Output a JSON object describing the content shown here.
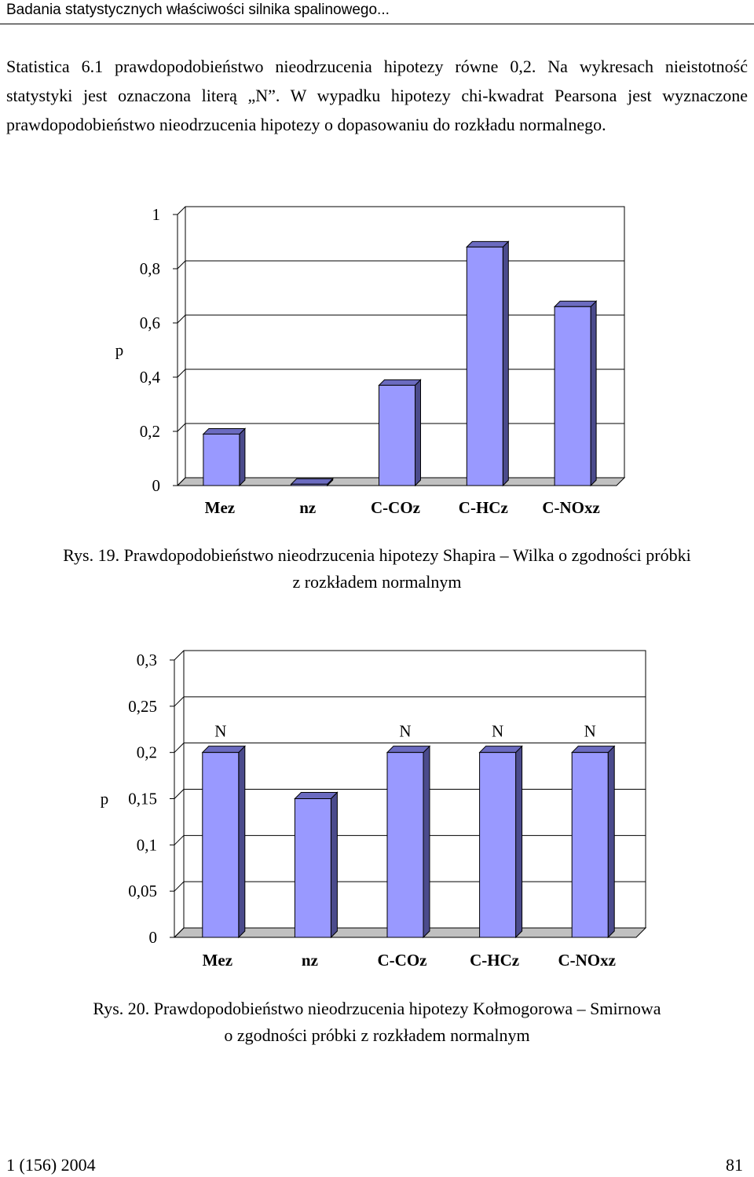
{
  "header": {
    "running_title": "Badania statystycznych właściwości silnika spalinowego..."
  },
  "paragraph": "Statistica 6.1 prawdopodobieństwo nieodrzucenia hipotezy równe 0,2. Na wykresach nieistotność statystyki jest oznaczona literą „N”. W wypadku hipotezy chi-kwadrat Pearsona jest wyznaczone prawdopodobieństwo nieodrzucenia hipotezy o dopasowaniu do rozkładu normalnego.",
  "figure19": {
    "caption_line1": "Rys. 19. Prawdopodobieństwo nieodrzucenia hipotezy Shapira – Wilka o zgodności próbki",
    "caption_line2": "z rozkładem normalnym"
  },
  "figure20": {
    "caption_line1": "Rys. 20. Prawdopodobieństwo nieodrzucenia hipotezy Kołmogorowa – Smirnowa",
    "caption_line2": "o zgodności próbki z rozkładem normalnym"
  },
  "footer": {
    "issue": "1 (156) 2004",
    "page": "81"
  },
  "colors": {
    "bar_face": "#9999FF",
    "bar_side": "#4B4B8C",
    "bar_top": "#6B6BC0",
    "wall": "#C0C0C0"
  },
  "chart_data": [
    {
      "type": "bar",
      "title": "",
      "ylabel": "p",
      "xlabel": "",
      "categories": [
        "Mez",
        "nz",
        "C-COz",
        "C-HCz",
        "C-NOxz"
      ],
      "values": [
        0.19,
        0.005,
        0.37,
        0.88,
        0.66
      ],
      "ylim": [
        0,
        1
      ],
      "yticks": [
        "0",
        "0,2",
        "0,4",
        "0,6",
        "0,8",
        "1"
      ],
      "annotations": [
        "",
        "",
        "",
        "",
        ""
      ]
    },
    {
      "type": "bar",
      "title": "",
      "ylabel": "p",
      "xlabel": "",
      "categories": [
        "Mez",
        "nz",
        "C-COz",
        "C-HCz",
        "C-NOxz"
      ],
      "values": [
        0.2,
        0.15,
        0.2,
        0.2,
        0.2
      ],
      "ylim": [
        0,
        0.3
      ],
      "yticks": [
        "0",
        "0,05",
        "0,1",
        "0,15",
        "0,2",
        "0,25",
        "0,3"
      ],
      "annotations": [
        "N",
        "",
        "N",
        "N",
        "N"
      ]
    }
  ]
}
